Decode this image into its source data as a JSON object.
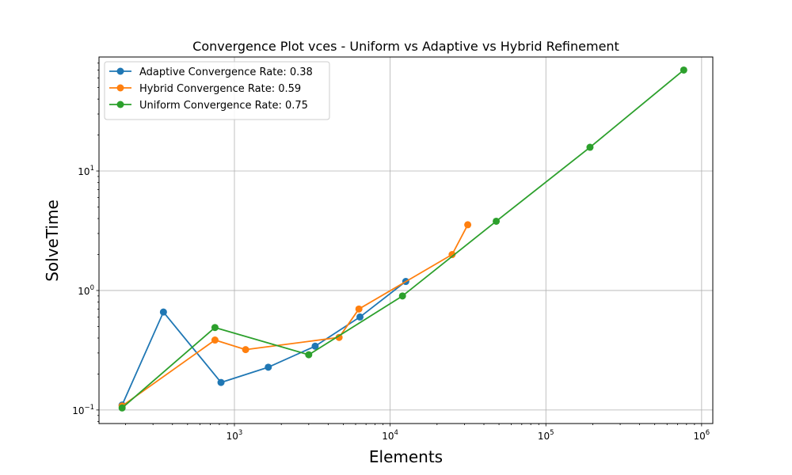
{
  "chart_data": {
    "type": "line",
    "title": "Convergence Plot vces - Uniform vs Adaptive vs Hybrid Refinement",
    "xlabel": "Elements",
    "ylabel": "SolveTime",
    "xscale": "log",
    "yscale": "log",
    "xlim": [
      135,
      1180000
    ],
    "ylim": [
      0.077,
      90
    ],
    "x_ticks": [
      {
        "base": "10",
        "exp": "3",
        "value": 1000
      },
      {
        "base": "10",
        "exp": "4",
        "value": 10000
      },
      {
        "base": "10",
        "exp": "5",
        "value": 100000
      },
      {
        "base": "10",
        "exp": "6",
        "value": 1000000
      }
    ],
    "y_ticks": [
      {
        "base": "10",
        "exp": "−1",
        "value": 0.1
      },
      {
        "base": "10",
        "exp": "0",
        "value": 1
      },
      {
        "base": "10",
        "exp": "1",
        "value": 10
      }
    ],
    "grid": true,
    "legend_position": "top-left",
    "series": [
      {
        "name": "Adaptive Convergence Rate: 0.38",
        "color": "#1f77b4",
        "x": [
          190,
          350,
          820,
          1650,
          3300,
          6400,
          12600
        ],
        "y": [
          0.11,
          0.66,
          0.17,
          0.228,
          0.342,
          0.6,
          1.19
        ]
      },
      {
        "name": "Hybrid Convergence Rate: 0.59",
        "color": "#ff7f0e",
        "x": [
          190,
          750,
          1180,
          4700,
          6300,
          25000,
          31500
        ],
        "y": [
          0.108,
          0.385,
          0.32,
          0.405,
          0.7,
          2.0,
          3.55
        ]
      },
      {
        "name": "Uniform Convergence Rate: 0.75",
        "color": "#2ca02c",
        "x": [
          190,
          750,
          3000,
          12000,
          48000,
          192000,
          768000
        ],
        "y": [
          0.104,
          0.49,
          0.29,
          0.9,
          3.8,
          15.8,
          70
        ]
      }
    ]
  }
}
